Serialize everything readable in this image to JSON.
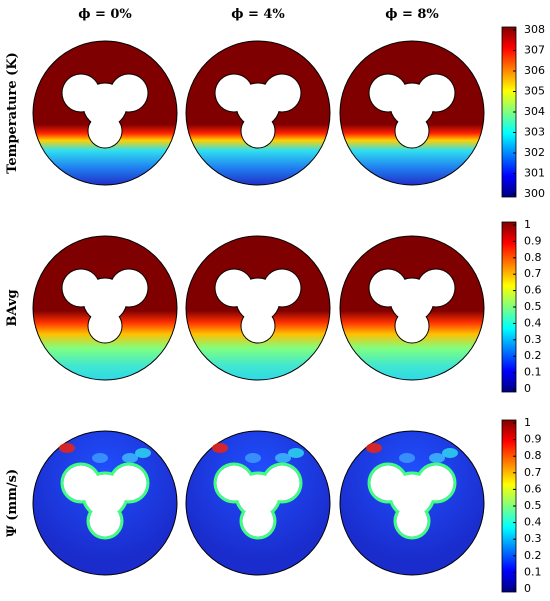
{
  "columns": [
    "ϕ = 0%",
    "ϕ = 4%",
    "ϕ = 8%"
  ],
  "rows": [
    {
      "label": "Temperature (K)",
      "colorbar": {
        "range": [
          300,
          308
        ],
        "ticks": [
          300,
          301,
          302,
          303,
          304,
          305,
          306,
          307,
          308
        ]
      }
    },
    {
      "label": "BAvg",
      "colorbar": {
        "range": [
          0,
          1
        ],
        "ticks": [
          0,
          0.1,
          0.2,
          0.3,
          0.4,
          0.5,
          0.6,
          0.7,
          0.8,
          0.9,
          1
        ]
      }
    },
    {
      "label": "Ψ (mm/s)",
      "colorbar": {
        "range": [
          0,
          1
        ],
        "ticks": [
          0,
          0.1,
          0.2,
          0.3,
          0.4,
          0.5,
          0.6,
          0.7,
          0.8,
          0.9,
          1
        ]
      }
    }
  ]
}
